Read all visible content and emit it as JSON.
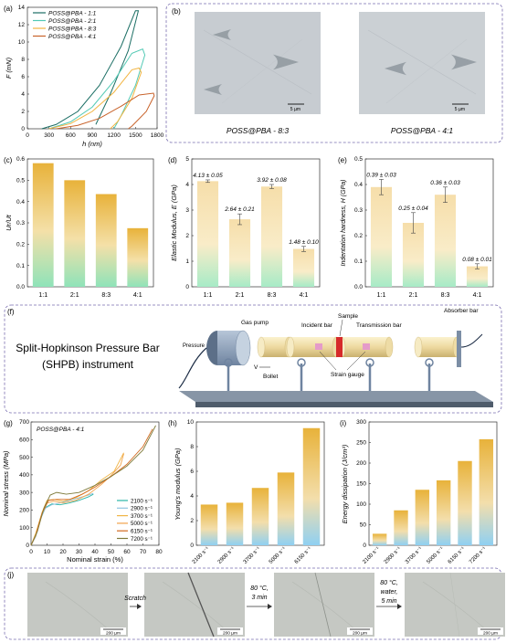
{
  "panels": {
    "a": {
      "label": "(a)",
      "ylabel": "F (mN)",
      "xlabel": "h (nm)",
      "xticks": [
        0,
        300,
        600,
        900,
        1200,
        1500,
        1800
      ],
      "yticks": [
        0,
        2,
        4,
        6,
        8,
        10,
        12,
        14
      ],
      "legend": [
        "POSS@PBA - 1:1",
        "POSS@PBA - 2:1",
        "POSS@PBA - 8:3",
        "POSS@PBA - 4:1"
      ]
    },
    "b": {
      "label": "(b)",
      "captions": [
        "POSS@PBA - 8:3",
        "POSS@PBA - 4:1"
      ],
      "scale": "5 µm"
    },
    "c": {
      "label": "(c)",
      "ylabel": "Ur/Ut",
      "categories": [
        "1:1",
        "2:1",
        "8:3",
        "4:1"
      ],
      "yticks": [
        "0.0",
        "0.1",
        "0.2",
        "0.3",
        "0.4",
        "0.5",
        "0.6"
      ]
    },
    "d": {
      "label": "(d)",
      "ylabel": "Elastic Modulus, E (GPa)",
      "categories": [
        "1:1",
        "2:1",
        "8:3",
        "4:1"
      ],
      "yticks": [
        0,
        1,
        2,
        3,
        4,
        5
      ],
      "labels": [
        "4.13 ± 0.05",
        "2.64 ± 0.21",
        "3.92 ± 0.08",
        "1.48 ± 0.10"
      ]
    },
    "e": {
      "label": "(e)",
      "ylabel": "Indentation hardness, H (GPa)",
      "categories": [
        "1:1",
        "2:1",
        "8:3",
        "4:1"
      ],
      "yticks": [
        "0.0",
        "0.1",
        "0.2",
        "0.3",
        "0.4",
        "0.5"
      ],
      "labels": [
        "0.39 ± 0.03",
        "0.25 ± 0.04",
        "0.36 ± 0.03",
        "0.08 ± 0.01"
      ]
    },
    "f": {
      "label": "(f)",
      "title": "Split-Hopkinson Pressure Bar (SHPB) instrument",
      "parts": {
        "gas": "Gas pump",
        "pressure": "Pressure",
        "incident": "Incident bar",
        "sample": "Sample",
        "transmission": "Transmission bar",
        "absorber": "Absorber bar",
        "v": "V",
        "bollet": "Bollet",
        "strain": "Strain gauge"
      }
    },
    "g": {
      "label": "(g)",
      "title": "POSS@PBA - 4:1",
      "ylabel": "Nominal stress (MPa)",
      "xlabel": "Nominal strain (%)",
      "xticks": [
        0,
        10,
        20,
        30,
        40,
        50,
        60,
        70,
        80
      ],
      "yticks": [
        0,
        100,
        200,
        300,
        400,
        500,
        600,
        700
      ],
      "legend": [
        "2100 s⁻¹",
        "2900 s⁻¹",
        "3700 s⁻¹",
        "5000 s⁻¹",
        "6150 s⁻¹",
        "7200 s⁻¹"
      ]
    },
    "h": {
      "label": "(h)",
      "ylabel": "Young's modulus (GPa)",
      "categories": [
        "2100 s⁻¹",
        "2900 s⁻¹",
        "3700 s⁻¹",
        "5000 s⁻¹",
        "6150 s⁻¹"
      ],
      "yticks": [
        0,
        2,
        4,
        6,
        8,
        10
      ]
    },
    "i": {
      "label": "(i)",
      "ylabel": "Energy dissipation (J/cm³)",
      "categories": [
        "2100 s⁻¹",
        "2900 s⁻¹",
        "3700 s⁻¹",
        "5000 s⁻¹",
        "6150 s⁻¹",
        "7200 s⁻¹"
      ],
      "yticks": [
        0,
        50,
        100,
        150,
        200,
        250,
        300
      ]
    },
    "j": {
      "label": "(j)",
      "steps": [
        "Scratch",
        "80 °C, 3 min",
        "80 °C, water, 5 min"
      ],
      "scale": "200 µm"
    }
  },
  "colors": {
    "s1": "#1b6e64",
    "s2": "#52c9b4",
    "s3": "#f2b441",
    "s4": "#c8622a",
    "barTop": "#e8b23a",
    "barBottom": "#8fe0bd",
    "barTopBlue": "#e8b23a",
    "barBottomBlue": "#7cc6f0",
    "g": [
      "#29b5a7",
      "#8fc3e0",
      "#f0b546",
      "#f2a34a",
      "#d2691e",
      "#7e7a3a"
    ]
  },
  "chart_data": [
    {
      "type": "line",
      "panel": "a",
      "xlabel": "h (nm)",
      "ylabel": "F (mN)",
      "xlim": [
        0,
        1800
      ],
      "ylim": [
        0,
        14
      ],
      "series": [
        {
          "name": "POSS@PBA - 1:1",
          "points": [
            [
              200,
              0
            ],
            [
              400,
              0.5
            ],
            [
              700,
              2
            ],
            [
              1000,
              5
            ],
            [
              1300,
              9.5
            ],
            [
              1500,
              13.6
            ],
            [
              1540,
              13.6
            ],
            [
              1400,
              9
            ],
            [
              1150,
              4
            ],
            [
              950,
              0.5
            ]
          ]
        },
        {
          "name": "POSS@PBA - 2:1",
          "points": [
            [
              300,
              0
            ],
            [
              600,
              0.8
            ],
            [
              900,
              2.5
            ],
            [
              1200,
              5.5
            ],
            [
              1450,
              8.7
            ],
            [
              1600,
              9.2
            ],
            [
              1630,
              8.5
            ],
            [
              1500,
              5
            ],
            [
              1300,
              1.5
            ],
            [
              1200,
              0
            ]
          ]
        },
        {
          "name": "POSS@PBA - 8:3",
          "points": [
            [
              300,
              0
            ],
            [
              600,
              0.6
            ],
            [
              900,
              2
            ],
            [
              1200,
              4.2
            ],
            [
              1450,
              6.8
            ],
            [
              1550,
              7.0
            ],
            [
              1580,
              6.5
            ],
            [
              1450,
              3.5
            ],
            [
              1250,
              0.8
            ],
            [
              1150,
              0
            ]
          ]
        },
        {
          "name": "POSS@PBA - 4:1",
          "points": [
            [
              400,
              0
            ],
            [
              700,
              0.4
            ],
            [
              1000,
              1.2
            ],
            [
              1300,
              2.6
            ],
            [
              1550,
              3.9
            ],
            [
              1750,
              4.1
            ],
            [
              1760,
              3.8
            ],
            [
              1650,
              2
            ],
            [
              1450,
              0.3
            ],
            [
              1400,
              0
            ]
          ]
        }
      ]
    },
    {
      "type": "bar",
      "panel": "c",
      "categories": [
        "1:1",
        "2:1",
        "8:3",
        "4:1"
      ],
      "values": [
        0.58,
        0.5,
        0.435,
        0.275
      ],
      "ylim": [
        0,
        0.6
      ]
    },
    {
      "type": "bar",
      "panel": "d",
      "categories": [
        "1:1",
        "2:1",
        "8:3",
        "4:1"
      ],
      "values": [
        4.13,
        2.64,
        3.92,
        1.48
      ],
      "errors": [
        0.05,
        0.21,
        0.08,
        0.1
      ],
      "ylim": [
        0,
        5
      ]
    },
    {
      "type": "bar",
      "panel": "e",
      "categories": [
        "1:1",
        "2:1",
        "8:3",
        "4:1"
      ],
      "values": [
        0.39,
        0.25,
        0.36,
        0.08
      ],
      "errors": [
        0.03,
        0.04,
        0.03,
        0.01
      ],
      "ylim": [
        0,
        0.5
      ]
    },
    {
      "type": "line",
      "panel": "g",
      "xlim": [
        0,
        80
      ],
      "ylim": [
        0,
        700
      ],
      "series": [
        {
          "name": "2100 s⁻¹",
          "points": [
            [
              0,
              0
            ],
            [
              3,
              60
            ],
            [
              6,
              160
            ],
            [
              9,
              215
            ],
            [
              13,
              235
            ],
            [
              18,
              230
            ],
            [
              24,
              240
            ],
            [
              30,
              255
            ],
            [
              36,
              275
            ],
            [
              39,
              290
            ]
          ]
        },
        {
          "name": "2900 s⁻¹",
          "points": [
            [
              0,
              0
            ],
            [
              3,
              50
            ],
            [
              6,
              150
            ],
            [
              9,
              210
            ],
            [
              13,
              230
            ],
            [
              18,
              240
            ],
            [
              24,
              255
            ],
            [
              30,
              270
            ],
            [
              36,
              285
            ],
            [
              39,
              295
            ]
          ]
        },
        {
          "name": "3700 s⁻¹",
          "points": [
            [
              0,
              0
            ],
            [
              3,
              70
            ],
            [
              7,
              190
            ],
            [
              10,
              255
            ],
            [
              14,
              260
            ],
            [
              20,
              250
            ],
            [
              28,
              270
            ],
            [
              36,
              310
            ],
            [
              44,
              370
            ],
            [
              52,
              420
            ],
            [
              58,
              525
            ]
          ]
        },
        {
          "name": "5000 s⁻¹",
          "points": [
            [
              0,
              0
            ],
            [
              3,
              55
            ],
            [
              7,
              180
            ],
            [
              10,
              240
            ],
            [
              14,
              250
            ],
            [
              20,
              240
            ],
            [
              28,
              255
            ],
            [
              36,
              290
            ],
            [
              44,
              345
            ],
            [
              50,
              395
            ],
            [
              56,
              455
            ],
            [
              58,
              520
            ]
          ]
        },
        {
          "name": "6150 s⁻¹",
          "points": [
            [
              0,
              0
            ],
            [
              3,
              60
            ],
            [
              7,
              185
            ],
            [
              11,
              255
            ],
            [
              16,
              260
            ],
            [
              24,
              260
            ],
            [
              32,
              290
            ],
            [
              40,
              330
            ],
            [
              50,
              390
            ],
            [
              60,
              460
            ],
            [
              70,
              560
            ],
            [
              76,
              660
            ]
          ]
        },
        {
          "name": "7200 s⁻¹",
          "points": [
            [
              0,
              0
            ],
            [
              4,
              80
            ],
            [
              8,
              210
            ],
            [
              12,
              285
            ],
            [
              16,
              300
            ],
            [
              22,
              290
            ],
            [
              30,
              300
            ],
            [
              40,
              340
            ],
            [
              50,
              390
            ],
            [
              60,
              450
            ],
            [
              70,
              540
            ],
            [
              78,
              680
            ]
          ]
        }
      ]
    },
    {
      "type": "bar",
      "panel": "h",
      "categories": [
        "2100 s⁻¹",
        "2900 s⁻¹",
        "3700 s⁻¹",
        "5000 s⁻¹",
        "6150 s⁻¹"
      ],
      "values": [
        3.3,
        3.45,
        4.65,
        5.9,
        9.5
      ],
      "ylim": [
        0,
        10
      ]
    },
    {
      "type": "bar",
      "panel": "i",
      "categories": [
        "2100 s⁻¹",
        "2900 s⁻¹",
        "3700 s⁻¹",
        "5000 s⁻¹",
        "6150 s⁻¹",
        "7200 s⁻¹"
      ],
      "values": [
        28,
        85,
        135,
        158,
        205,
        258
      ],
      "ylim": [
        0,
        300
      ]
    }
  ]
}
